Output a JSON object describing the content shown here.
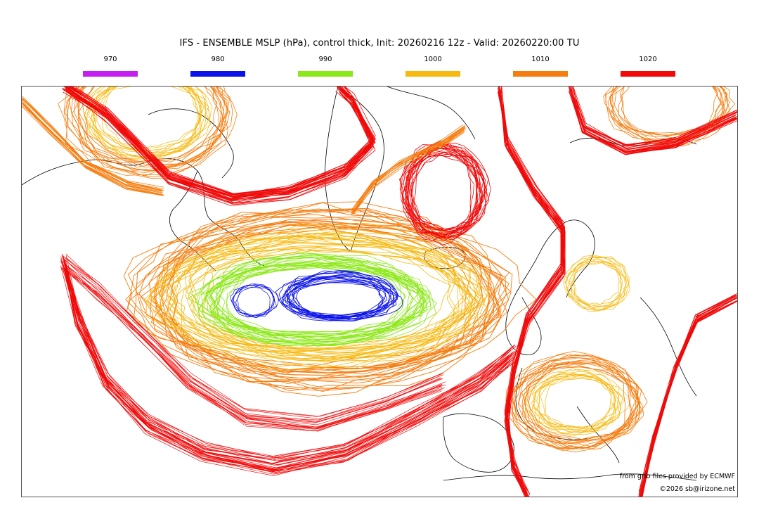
{
  "title": "IFS - ENSEMBLE MSLP (hPa), control thick, Init: 20260216 12z - Valid: 20260220:00 TU",
  "legend": [
    {
      "label": "970",
      "color": "#c41ff0"
    },
    {
      "label": "980",
      "color": "#0a12e8"
    },
    {
      "label": "990",
      "color": "#8de81a"
    },
    {
      "label": "1000",
      "color": "#f7b90f"
    },
    {
      "label": "1010",
      "color": "#f57d0f"
    },
    {
      "label": "1020",
      "color": "#f00a0a"
    }
  ],
  "credit_source": "from grib files provided by ECMWF",
  "credit_copyright": "©2026 sb@irizone.net"
}
